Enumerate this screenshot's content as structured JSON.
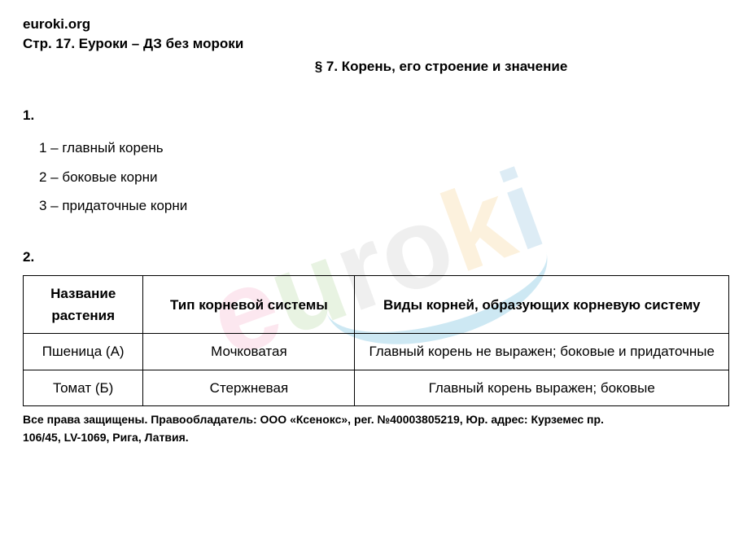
{
  "header": {
    "site": "euroki.org",
    "page_ref": "Стр. 17. Еуроки – ДЗ без мороки",
    "section_title": "§ 7. Корень, его строение и значение"
  },
  "watermark": {
    "text": "euroki",
    "colors": [
      "#f5a3c0",
      "#a8d08d",
      "#c0c0c0",
      "#c0c0c0",
      "#f5c97a",
      "#7ab5d9"
    ],
    "arc_color": "#5bb5d9"
  },
  "q1": {
    "number": "1.",
    "items": [
      "1 – главный корень",
      "2 – боковые корни",
      "3 – придаточные корни"
    ]
  },
  "q2": {
    "number": "2.",
    "table": {
      "columns": [
        "Название растения",
        "Тип корневой системы",
        "Виды корней, образующих корневую систему"
      ],
      "col_widths": [
        "17%",
        "30%",
        "53%"
      ],
      "rows": [
        [
          "Пшеница (А)",
          "Мочковатая",
          "Главный корень не выражен; боковые и придаточные"
        ],
        [
          "Томат (Б)",
          "Стержневая",
          "Главный корень выражен; боковые"
        ]
      ]
    }
  },
  "footer": {
    "line1": "Все права защищены. Правообладатель: ООО «Ксенокс», рег. №40003805219, Юр. адрес: Курземес пр.",
    "line2": "106/45, LV-1069, Рига, Латвия."
  },
  "styling": {
    "body_font": "Arial",
    "text_color": "#000000",
    "background_color": "#ffffff",
    "base_fontsize": 17,
    "footer_fontsize": 14,
    "border_color": "#000000"
  }
}
